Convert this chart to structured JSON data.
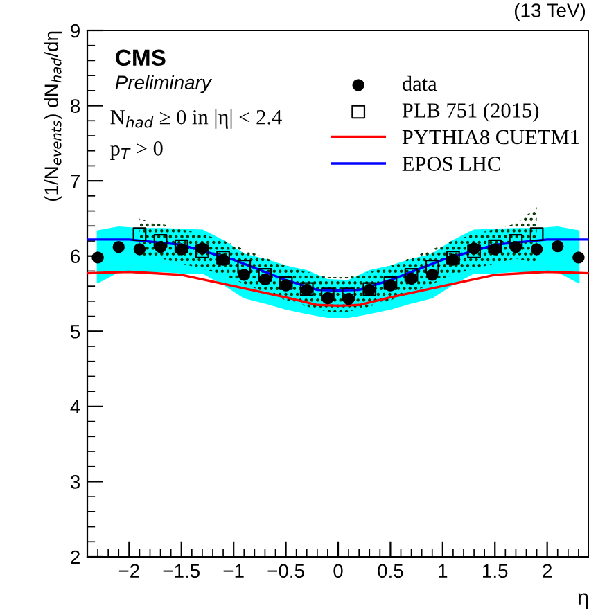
{
  "chart_data": {
    "type": "scatter",
    "title": "(13 TeV)",
    "xlabel": "η",
    "ylabel": "(1/N$_{events}$) dN$_{had}$/dη",
    "annotations": [
      "CMS",
      "Preliminary",
      "N$_{had}$ ≥ 0 in |η| < 2.4",
      "p$_{T}$ > 0"
    ],
    "xlim": [
      -2.4,
      2.4
    ],
    "xticks": [
      -2,
      -1.5,
      -1,
      -0.5,
      0,
      0.5,
      1,
      1.5,
      2
    ],
    "ylim": [
      2,
      9
    ],
    "yticks": [
      2,
      3,
      4,
      5,
      6,
      7,
      8,
      9
    ],
    "legend": "top right",
    "grid": false,
    "series": [
      {
        "name": "data",
        "marker": "circle",
        "color": "#000000",
        "x": [
          -2.3,
          -2.1,
          -1.9,
          -1.7,
          -1.5,
          -1.3,
          -1.1,
          -0.9,
          -0.7,
          -0.5,
          -0.3,
          -0.1,
          0.1,
          0.3,
          0.5,
          0.7,
          0.9,
          1.1,
          1.3,
          1.5,
          1.7,
          1.9,
          2.1,
          2.3
        ],
        "values": [
          5.98,
          6.12,
          6.09,
          6.12,
          6.09,
          6.1,
          5.95,
          5.75,
          5.69,
          5.61,
          5.55,
          5.44,
          5.43,
          5.55,
          5.61,
          5.7,
          5.75,
          5.95,
          6.1,
          6.09,
          6.12,
          6.09,
          6.13,
          5.98
        ],
        "lower": [
          5.65,
          5.8,
          5.78,
          5.8,
          5.78,
          5.78,
          5.63,
          5.45,
          5.38,
          5.3,
          5.24,
          5.19,
          5.19,
          5.24,
          5.3,
          5.38,
          5.45,
          5.63,
          5.78,
          5.78,
          5.8,
          5.78,
          5.8,
          5.65
        ],
        "upper": [
          6.33,
          6.38,
          6.36,
          6.36,
          6.35,
          6.34,
          6.2,
          6.02,
          5.95,
          5.86,
          5.8,
          5.68,
          5.67,
          5.8,
          5.86,
          5.95,
          6.02,
          6.2,
          6.34,
          6.35,
          6.36,
          6.36,
          6.38,
          6.33
        ]
      },
      {
        "name": "PLB 751 (2015)",
        "marker": "square",
        "color": "#000000",
        "x": [
          -1.9,
          -1.7,
          -1.5,
          -1.3,
          -1.1,
          -0.9,
          -0.7,
          -0.5,
          -0.3,
          -0.1,
          0.1,
          0.3,
          0.5,
          0.7,
          0.9,
          1.1,
          1.3,
          1.5,
          1.7,
          1.9
        ],
        "values": [
          6.29,
          6.2,
          6.13,
          6.06,
          5.98,
          5.86,
          5.75,
          5.64,
          5.56,
          5.49,
          5.49,
          5.56,
          5.64,
          5.75,
          5.86,
          5.98,
          6.06,
          6.13,
          6.2,
          6.29
        ],
        "lower": [
          6.0,
          5.97,
          5.9,
          5.83,
          5.75,
          5.63,
          5.52,
          5.41,
          5.33,
          5.26,
          5.26,
          5.33,
          5.41,
          5.52,
          5.63,
          5.75,
          5.83,
          5.9,
          5.97,
          5.9
        ],
        "upper": [
          6.5,
          6.43,
          6.36,
          6.29,
          6.21,
          6.09,
          5.98,
          5.87,
          5.79,
          5.72,
          5.72,
          5.79,
          5.87,
          5.98,
          6.09,
          6.21,
          6.29,
          6.36,
          6.43,
          6.65
        ]
      },
      {
        "name": "PYTHIA8 CUETM1",
        "type": "line",
        "color": "#ff0000",
        "x": [
          -2.4,
          -2.0,
          -1.5,
          -1.0,
          -0.5,
          -0.2,
          0,
          0.2,
          0.5,
          1.0,
          1.5,
          2.0,
          2.4
        ],
        "values": [
          5.77,
          5.79,
          5.75,
          5.6,
          5.45,
          5.35,
          5.34,
          5.35,
          5.45,
          5.6,
          5.75,
          5.79,
          5.77
        ]
      },
      {
        "name": "EPOS LHC",
        "type": "line",
        "color": "#0000ff",
        "x": [
          -2.4,
          -2.0,
          -1.5,
          -1.0,
          -0.5,
          -0.2,
          0,
          0.2,
          0.5,
          1.0,
          1.5,
          2.0,
          2.4
        ],
        "values": [
          6.22,
          6.22,
          6.15,
          5.95,
          5.68,
          5.55,
          5.54,
          5.55,
          5.68,
          5.95,
          6.15,
          6.22,
          6.22
        ]
      }
    ]
  }
}
